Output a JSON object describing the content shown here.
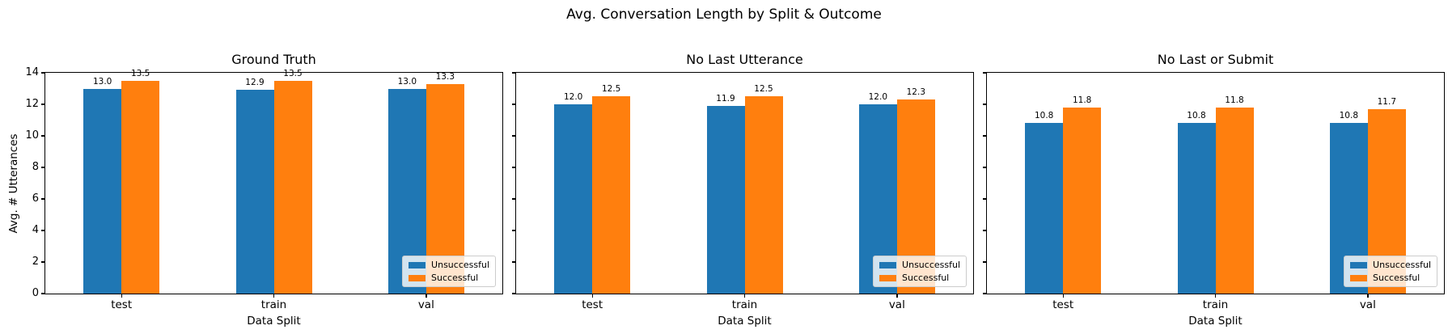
{
  "figure": {
    "suptitle": "Avg. Conversation Length by Split & Outcome",
    "background": "#ffffff",
    "accent_colors": {
      "unsuccessful": "#1f77b4",
      "successful": "#ff7f0e"
    }
  },
  "chart_data": [
    {
      "type": "bar",
      "title": "Ground Truth",
      "categories": [
        "test",
        "train",
        "val"
      ],
      "series": [
        {
          "name": "Unsuccessful",
          "color": "#1f77b4",
          "values": [
            13.0,
            12.9,
            13.0
          ]
        },
        {
          "name": "Successful",
          "color": "#ff7f0e",
          "values": [
            13.5,
            13.5,
            13.3
          ]
        }
      ],
      "xlabel": "Data Split",
      "ylabel": "Avg. # Utterances",
      "ylim": [
        0,
        14
      ],
      "yticks": [
        0,
        2,
        4,
        6,
        8,
        10,
        12,
        14
      ],
      "show_ytick_labels": true,
      "grid": false,
      "legend": {
        "position": "lower right",
        "entries": [
          "Unsuccessful",
          "Successful"
        ]
      }
    },
    {
      "type": "bar",
      "title": "No Last Utterance",
      "categories": [
        "test",
        "train",
        "val"
      ],
      "series": [
        {
          "name": "Unsuccessful",
          "color": "#1f77b4",
          "values": [
            12.0,
            11.9,
            12.0
          ]
        },
        {
          "name": "Successful",
          "color": "#ff7f0e",
          "values": [
            12.5,
            12.5,
            12.3
          ]
        }
      ],
      "xlabel": "Data Split",
      "ylabel": "",
      "ylim": [
        0,
        14
      ],
      "yticks": [
        0,
        2,
        4,
        6,
        8,
        10,
        12,
        14
      ],
      "show_ytick_labels": false,
      "grid": false,
      "legend": {
        "position": "lower right",
        "entries": [
          "Unsuccessful",
          "Successful"
        ]
      }
    },
    {
      "type": "bar",
      "title": "No Last or Submit",
      "categories": [
        "test",
        "train",
        "val"
      ],
      "series": [
        {
          "name": "Unsuccessful",
          "color": "#1f77b4",
          "values": [
            10.8,
            10.8,
            10.8
          ]
        },
        {
          "name": "Successful",
          "color": "#ff7f0e",
          "values": [
            11.8,
            11.8,
            11.7
          ]
        }
      ],
      "xlabel": "Data Split",
      "ylabel": "",
      "ylim": [
        0,
        14
      ],
      "yticks": [
        0,
        2,
        4,
        6,
        8,
        10,
        12,
        14
      ],
      "show_ytick_labels": false,
      "grid": false,
      "legend": {
        "position": "lower right",
        "entries": [
          "Unsuccessful",
          "Successful"
        ]
      }
    }
  ]
}
